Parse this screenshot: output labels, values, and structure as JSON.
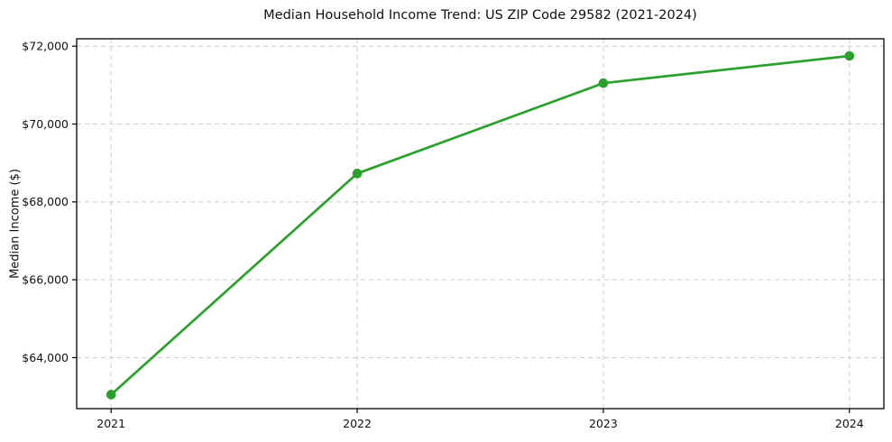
{
  "chart_data": {
    "type": "line",
    "title": "Median Household Income Trend: US ZIP Code 29582 (2021-2024)",
    "ylabel": "Median Income ($)",
    "xlabel": "",
    "x": [
      2021,
      2022,
      2023,
      2024
    ],
    "x_tick_labels": [
      "2021",
      "2022",
      "2023",
      "2024"
    ],
    "series": [
      {
        "name": "Median Household Income",
        "values": [
          63050,
          68730,
          71050,
          71750
        ]
      }
    ],
    "y_ticks": [
      64000,
      66000,
      68000,
      70000,
      72000
    ],
    "y_tick_labels": [
      "$64,000",
      "$66,000",
      "$68,000",
      "$70,000",
      "$72,000"
    ],
    "xlim": [
      2020.86,
      2024.14
    ],
    "ylim": [
      62690,
      72190
    ],
    "grid": true,
    "grid_style": "dashed",
    "legend": "none",
    "colors": {
      "line": "#2ca02c",
      "marker": "#2ca02c",
      "grid": "#cccccc",
      "spine": "#000000",
      "text": "#111111"
    }
  }
}
